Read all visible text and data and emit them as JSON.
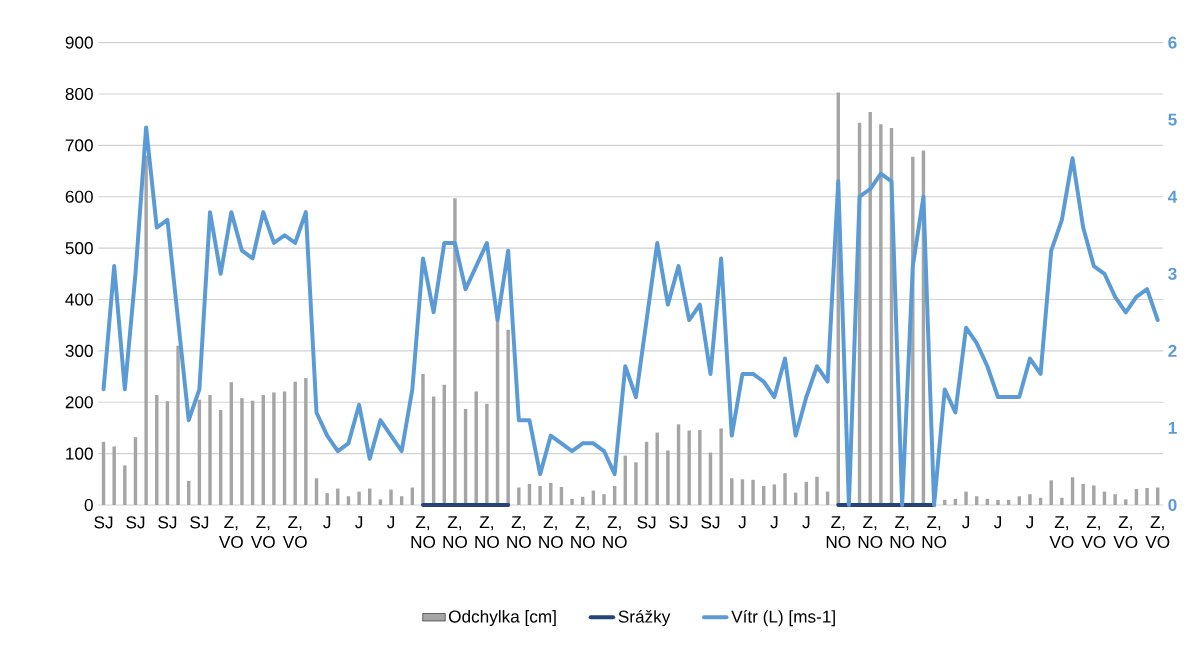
{
  "chart_data": {
    "type": "bar",
    "categories": [
      "SJ",
      null,
      null,
      "SJ",
      null,
      null,
      "SJ",
      null,
      null,
      "SJ",
      null,
      null,
      "Z, VO",
      null,
      null,
      "Z, VO",
      null,
      null,
      "Z, VO",
      null,
      null,
      "J",
      null,
      null,
      "J",
      null,
      null,
      "J",
      null,
      null,
      "Z, NO",
      null,
      null,
      "Z, NO",
      null,
      null,
      "Z, NO",
      null,
      null,
      "Z, NO",
      null,
      null,
      "Z, NO",
      null,
      null,
      "Z, NO",
      null,
      null,
      "Z, NO",
      null,
      null,
      "SJ",
      null,
      null,
      "SJ",
      null,
      null,
      "SJ",
      null,
      null,
      "J",
      null,
      null,
      "J",
      null,
      null,
      "J",
      null,
      null,
      "Z, NO",
      null,
      null,
      "Z, NO",
      null,
      null,
      "Z, NO",
      null,
      null,
      "Z, NO",
      null,
      null,
      "J",
      null,
      null,
      "J",
      null,
      null,
      "J",
      null,
      null,
      "Z, VO",
      null,
      null,
      "Z, VO",
      null,
      null,
      "Z, VO",
      null,
      null,
      "Z, VO"
    ],
    "series": [
      {
        "name": "Odchylka [cm]",
        "type": "bar",
        "color": "#a5a5a5",
        "values": [
          123,
          114,
          77,
          132,
          680,
          214,
          202,
          310,
          47,
          205,
          214,
          185,
          239,
          208,
          203,
          214,
          219,
          221,
          240,
          247,
          52,
          23,
          32,
          17,
          26,
          32,
          11,
          30,
          17,
          34,
          255,
          211,
          234,
          597,
          187,
          221,
          197,
          360,
          341,
          34,
          41,
          37,
          43,
          35,
          12,
          16,
          28,
          21,
          37,
          96,
          83,
          123,
          141,
          106,
          157,
          145,
          146,
          102,
          149,
          52,
          50,
          49,
          37,
          40,
          62,
          24,
          45,
          55,
          26,
          803,
          null,
          744,
          765,
          741,
          734,
          null,
          678,
          690,
          null,
          10,
          12,
          26,
          17,
          12,
          10,
          10,
          17,
          21,
          14,
          48,
          14,
          54,
          41,
          38,
          26,
          21,
          11,
          31,
          33,
          34
        ]
      },
      {
        "name": "Srážky",
        "type": "line",
        "color": "#264478",
        "values": [
          null,
          null,
          null,
          null,
          null,
          null,
          null,
          null,
          null,
          null,
          null,
          null,
          null,
          null,
          null,
          null,
          null,
          null,
          null,
          null,
          null,
          null,
          null,
          null,
          null,
          null,
          null,
          null,
          null,
          null,
          0,
          0,
          0,
          0,
          0,
          0,
          0,
          0,
          0,
          null,
          null,
          null,
          null,
          null,
          null,
          null,
          null,
          null,
          null,
          null,
          null,
          null,
          null,
          null,
          null,
          null,
          null,
          null,
          null,
          null,
          null,
          null,
          null,
          null,
          null,
          null,
          null,
          null,
          null,
          0,
          0,
          0,
          0,
          0,
          0,
          0,
          0,
          0,
          0,
          null,
          null,
          null,
          null,
          null,
          null,
          null,
          null,
          null,
          null,
          null,
          null,
          null,
          null,
          null,
          null,
          null,
          null,
          null,
          null,
          null
        ]
      },
      {
        "name": "Vítr (L) [ms-1]",
        "type": "line",
        "axis": "y2",
        "color": "#5b9bd5",
        "values": [
          1.5,
          3.1,
          1.5,
          3.0,
          4.9,
          3.6,
          3.7,
          2.4,
          1.1,
          1.5,
          3.8,
          3.0,
          3.8,
          3.3,
          3.2,
          3.8,
          3.4,
          3.5,
          3.4,
          3.8,
          1.2,
          0.9,
          0.7,
          0.8,
          1.3,
          0.6,
          1.1,
          0.9,
          0.7,
          1.5,
          3.2,
          2.5,
          3.4,
          3.4,
          2.8,
          3.1,
          3.4,
          2.4,
          3.3,
          1.1,
          1.1,
          0.4,
          0.9,
          0.8,
          0.7,
          0.8,
          0.8,
          0.7,
          0.4,
          1.8,
          1.4,
          2.4,
          3.4,
          2.6,
          3.1,
          2.4,
          2.6,
          1.7,
          3.2,
          0.9,
          1.7,
          1.7,
          1.6,
          1.4,
          1.9,
          0.9,
          1.4,
          1.8,
          1.6,
          4.2,
          0,
          4.0,
          4.1,
          4.3,
          4.2,
          0,
          3.1,
          4.0,
          0,
          1.5,
          1.2,
          2.3,
          2.1,
          1.8,
          1.4,
          1.4,
          1.4,
          1.9,
          1.7,
          3.3,
          3.7,
          4.5,
          3.6,
          3.1,
          3.0,
          2.7,
          2.5,
          2.7,
          2.8,
          2.4
        ]
      }
    ],
    "ylim": [
      0,
      900
    ],
    "yticks": [
      0,
      100,
      200,
      300,
      400,
      500,
      600,
      700,
      800,
      900
    ],
    "y2lim": [
      0,
      6
    ],
    "y2ticks": [
      0,
      1,
      2,
      3,
      4,
      5,
      6
    ],
    "grid": "y",
    "legend": "bottom"
  }
}
